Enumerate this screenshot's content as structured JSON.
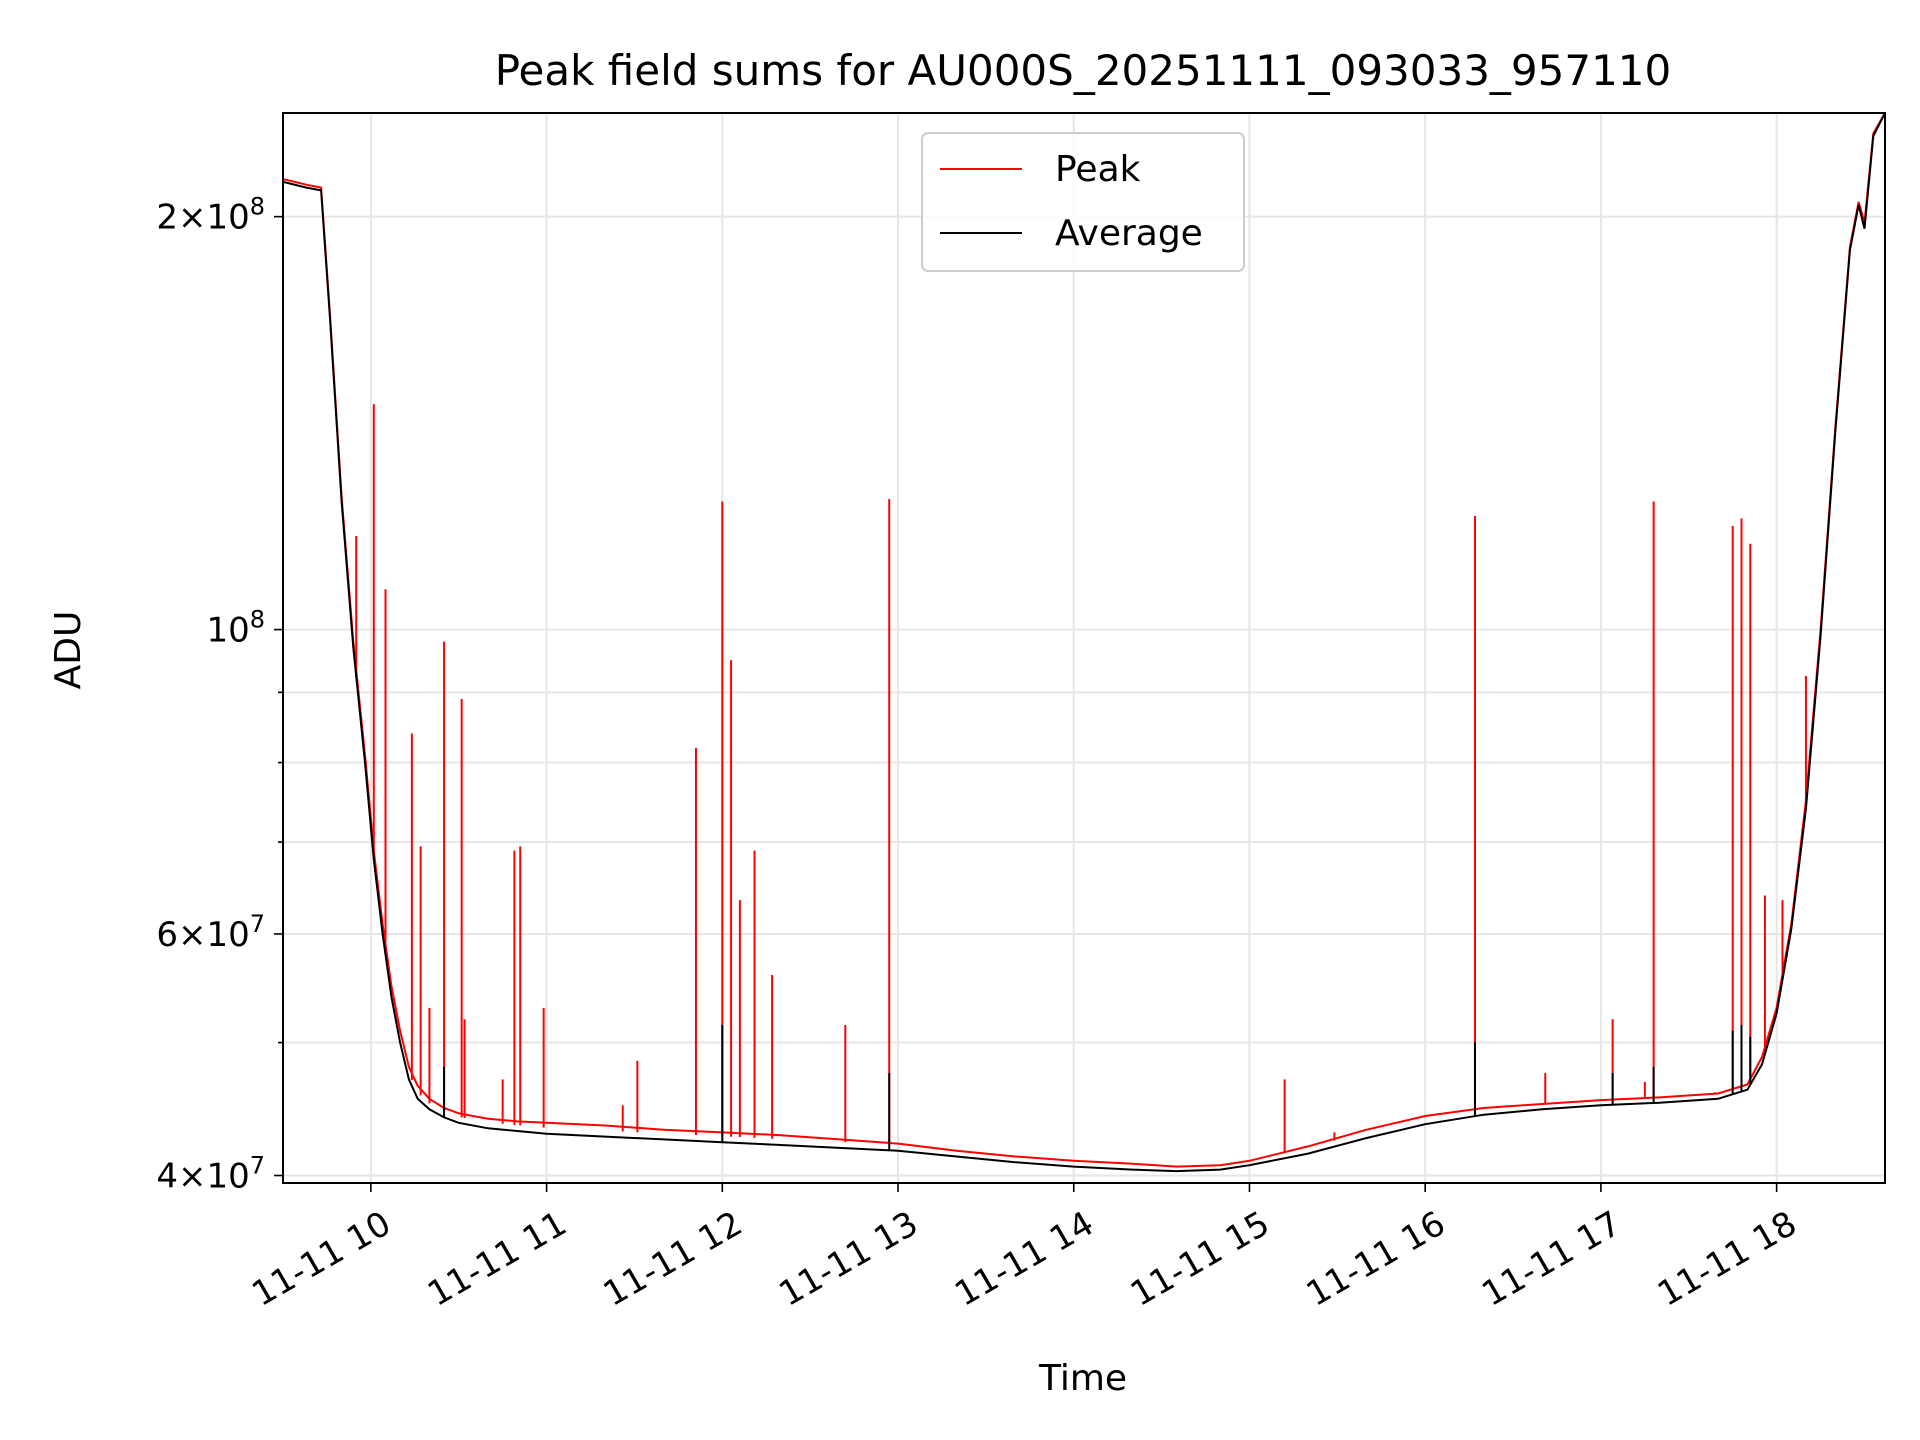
{
  "chart_data": {
    "type": "line",
    "title": "Peak field sums for AU000S_20251111_093033_957110",
    "xlabel": "Time",
    "ylabel": "ADU",
    "y_scale": "log",
    "grid": true,
    "legend_position": "top-center",
    "xlim": [
      "2025-11-11 09:30",
      "2025-11-11 18:37"
    ],
    "ylim": [
      39500000,
      238000000
    ],
    "x_ticks": [
      {
        "value": "2025-11-11 10:00",
        "label": "11-11 10"
      },
      {
        "value": "2025-11-11 11:00",
        "label": "11-11 11"
      },
      {
        "value": "2025-11-11 12:00",
        "label": "11-11 12"
      },
      {
        "value": "2025-11-11 13:00",
        "label": "11-11 13"
      },
      {
        "value": "2025-11-11 14:00",
        "label": "11-11 14"
      },
      {
        "value": "2025-11-11 15:00",
        "label": "11-11 15"
      },
      {
        "value": "2025-11-11 16:00",
        "label": "11-11 16"
      },
      {
        "value": "2025-11-11 17:00",
        "label": "11-11 17"
      },
      {
        "value": "2025-11-11 18:00",
        "label": "11-11 18"
      }
    ],
    "y_ticks": [
      {
        "value": 40000000,
        "mantissa": "4",
        "exponent": "7"
      },
      {
        "value": 60000000,
        "mantissa": "6",
        "exponent": "7"
      },
      {
        "value": 100000000,
        "mantissa": "",
        "exponent": "8"
      },
      {
        "value": 200000000,
        "mantissa": "2",
        "exponent": "8"
      }
    ],
    "y_minor_ticks": [
      50000000,
      70000000,
      80000000,
      90000000
    ],
    "series": [
      {
        "name": "Peak",
        "color": "#ff0000",
        "x": [
          "09:30",
          "09:38",
          "09:43",
          "09:46",
          "09:50",
          "09:54",
          "09:58",
          "10:01",
          "10:04",
          "10:07",
          "10:10",
          "10:13",
          "10:16",
          "10:20",
          "10:25",
          "10:30",
          "10:40",
          "10:50",
          "11:00",
          "11:20",
          "11:40",
          "12:00",
          "12:20",
          "12:40",
          "13:00",
          "13:20",
          "13:40",
          "14:00",
          "14:20",
          "14:35",
          "14:50",
          "15:00",
          "15:20",
          "15:40",
          "16:00",
          "16:20",
          "16:40",
          "17:00",
          "17:20",
          "17:40",
          "17:50",
          "17:55",
          "18:00",
          "18:05",
          "18:10",
          "18:15",
          "18:20",
          "18:25",
          "18:28",
          "18:30",
          "18:33",
          "18:37"
        ],
        "y": [
          213000000,
          211000000,
          210000000,
          170000000,
          125000000,
          98000000,
          81000000,
          69000000,
          61000000,
          55000000,
          51000000,
          48000000,
          46500000,
          45500000,
          44800000,
          44400000,
          44000000,
          43800000,
          43700000,
          43500000,
          43200000,
          43000000,
          42800000,
          42500000,
          42200000,
          41700000,
          41300000,
          41000000,
          40800000,
          40600000,
          40700000,
          41000000,
          42000000,
          43200000,
          44200000,
          44800000,
          45100000,
          45400000,
          45600000,
          45900000,
          46600000,
          48800000,
          53000000,
          61000000,
          75000000,
          100000000,
          140000000,
          190000000,
          205000000,
          198000000,
          230000000,
          238000000
        ],
        "spikes": [
          {
            "x": "09:55",
            "y": 117000000
          },
          {
            "x": "10:01",
            "y": 146000000
          },
          {
            "x": "10:05",
            "y": 107000000
          },
          {
            "x": "10:14",
            "y": 84000000
          },
          {
            "x": "10:17",
            "y": 69500000
          },
          {
            "x": "10:20",
            "y": 53000000
          },
          {
            "x": "10:25",
            "y": 98000000
          },
          {
            "x": "10:31",
            "y": 89000000
          },
          {
            "x": "10:32",
            "y": 52000000
          },
          {
            "x": "10:45",
            "y": 47000000
          },
          {
            "x": "10:49",
            "y": 69000000
          },
          {
            "x": "10:51",
            "y": 69500000
          },
          {
            "x": "10:59",
            "y": 53000000
          },
          {
            "x": "11:26",
            "y": 45000000
          },
          {
            "x": "11:31",
            "y": 48500000
          },
          {
            "x": "11:51",
            "y": 82000000
          },
          {
            "x": "12:00",
            "y": 124000000
          },
          {
            "x": "12:03",
            "y": 95000000
          },
          {
            "x": "12:06",
            "y": 63500000
          },
          {
            "x": "12:11",
            "y": 69000000
          },
          {
            "x": "12:17",
            "y": 56000000
          },
          {
            "x": "12:42",
            "y": 51500000
          },
          {
            "x": "12:57",
            "y": 124500000
          },
          {
            "x": "15:12",
            "y": 47000000
          },
          {
            "x": "15:29",
            "y": 43000000
          },
          {
            "x": "16:17",
            "y": 121000000
          },
          {
            "x": "16:41",
            "y": 47500000
          },
          {
            "x": "17:04",
            "y": 52000000
          },
          {
            "x": "17:15",
            "y": 46800000
          },
          {
            "x": "17:18",
            "y": 124000000
          },
          {
            "x": "17:39",
            "y": 46000000
          },
          {
            "x": "17:45",
            "y": 119000000
          },
          {
            "x": "17:48",
            "y": 120500000
          },
          {
            "x": "17:51",
            "y": 115500000
          },
          {
            "x": "17:56",
            "y": 64000000
          },
          {
            "x": "18:02",
            "y": 63500000
          },
          {
            "x": "18:10",
            "y": 92500000
          }
        ]
      },
      {
        "name": "Average",
        "color": "#000000",
        "x": [
          "09:30",
          "09:38",
          "09:43",
          "09:46",
          "09:50",
          "09:54",
          "09:58",
          "10:01",
          "10:04",
          "10:07",
          "10:10",
          "10:13",
          "10:16",
          "10:20",
          "10:25",
          "10:30",
          "10:40",
          "10:50",
          "11:00",
          "11:20",
          "11:40",
          "12:00",
          "12:20",
          "12:40",
          "13:00",
          "13:20",
          "13:40",
          "14:00",
          "14:20",
          "14:35",
          "14:50",
          "15:00",
          "15:20",
          "15:40",
          "16:00",
          "16:20",
          "16:40",
          "17:00",
          "17:20",
          "17:40",
          "17:50",
          "17:55",
          "18:00",
          "18:05",
          "18:10",
          "18:15",
          "18:20",
          "18:25",
          "18:28",
          "18:30",
          "18:33",
          "18:37"
        ],
        "y": [
          212000000,
          210000000,
          209000000,
          169000000,
          124000000,
          97000000,
          80000000,
          68000000,
          60000000,
          54000000,
          50000000,
          47000000,
          45500000,
          44700000,
          44100000,
          43700000,
          43300000,
          43100000,
          42900000,
          42700000,
          42500000,
          42300000,
          42100000,
          41900000,
          41700000,
          41300000,
          40900000,
          40600000,
          40400000,
          40300000,
          40400000,
          40700000,
          41500000,
          42600000,
          43600000,
          44300000,
          44700000,
          45000000,
          45200000,
          45500000,
          46200000,
          48200000,
          52500000,
          60500000,
          74000000,
          99000000,
          139000000,
          189000000,
          204000000,
          196000000,
          229000000,
          238000000
        ],
        "spikes": [
          {
            "x": "10:25",
            "y": 48000000
          },
          {
            "x": "12:00",
            "y": 51500000
          },
          {
            "x": "12:57",
            "y": 47500000
          },
          {
            "x": "16:17",
            "y": 50000000
          },
          {
            "x": "17:04",
            "y": 47500000
          },
          {
            "x": "17:18",
            "y": 48000000
          },
          {
            "x": "17:45",
            "y": 51000000
          },
          {
            "x": "17:48",
            "y": 51500000
          },
          {
            "x": "17:51",
            "y": 50500000
          }
        ]
      }
    ]
  }
}
